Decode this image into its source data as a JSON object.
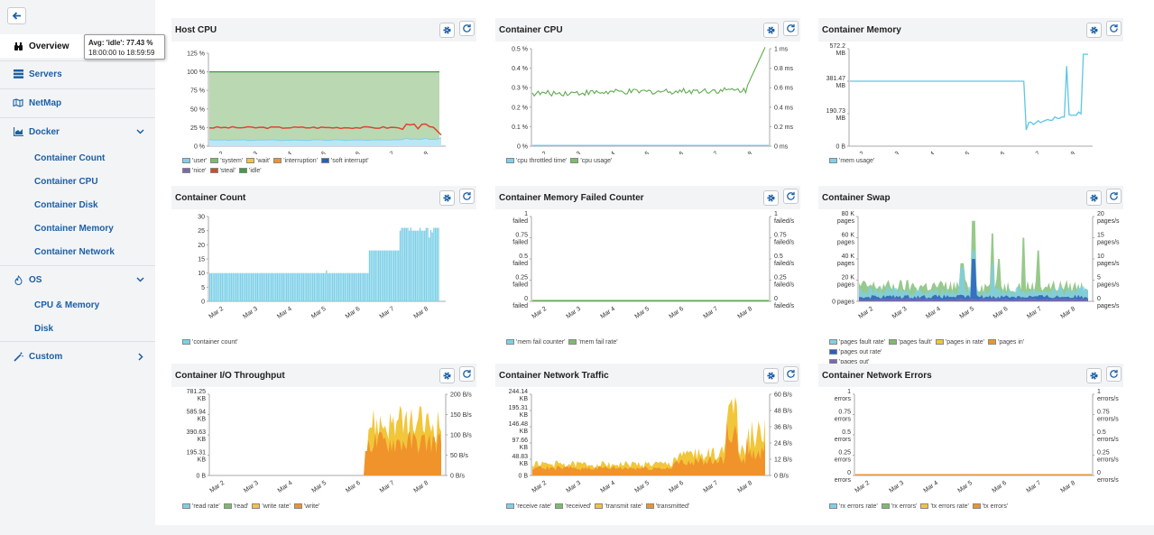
{
  "sidebar": {
    "nav": {
      "overview": "Overview",
      "servers": "Servers",
      "netmap": "NetMap",
      "docker": "Docker",
      "os": "OS",
      "custom": "Custom"
    },
    "docker_items": [
      "Container Count",
      "Container CPU",
      "Container Disk",
      "Container Memory",
      "Container Network"
    ],
    "os_items": [
      "CPU & Memory",
      "Disk"
    ]
  },
  "x_ticks": [
    "Mar 2",
    "Mar 3",
    "Mar 4",
    "Mar 5",
    "Mar 6",
    "Mar 7",
    "Mar 8"
  ],
  "tooltip": {
    "line1": "Avg: 'idle': 77.43 %",
    "line2": "18:00:00 to 18:59:59"
  },
  "panels": [
    {
      "title": "Host CPU",
      "y_left": [
        "125 %",
        "100 %",
        "75 %",
        "50 %",
        "25 %",
        "0 %"
      ],
      "y_right": [],
      "legend": [
        {
          "label": "'user'",
          "color": "#7ed0e8"
        },
        {
          "label": "'system'",
          "color": "#7dbb6e"
        },
        {
          "label": "'wait'",
          "color": "#f2c63a"
        },
        {
          "label": "'interruption'",
          "color": "#f0932b"
        },
        {
          "label": "'soft interrupt'",
          "color": "#2a5fb8"
        },
        {
          "label": "'nice'",
          "color": "#7a6aa8"
        },
        {
          "label": "'steal'",
          "color": "#d9472f"
        },
        {
          "label": "'idle'",
          "color": "#3f9a4c"
        }
      ]
    },
    {
      "title": "Container CPU",
      "y_left": [
        "0.5 %",
        "0.4 %",
        "0.3 %",
        "0.2 %",
        "0.1 %",
        "0 %"
      ],
      "y_right": [
        "1 ms",
        "0.8 ms",
        "0.6 ms",
        "0.4 ms",
        "0.2 ms",
        "0 ms"
      ],
      "legend": [
        {
          "label": "'cpu throttled time'",
          "color": "#7ed0e8"
        },
        {
          "label": "'cpu usage'",
          "color": "#7dbb6e"
        }
      ]
    },
    {
      "title": "Container Memory",
      "y_left": [
        "572.2 MB",
        "381.47 MB",
        "190.73 MB",
        "0 B"
      ],
      "y_right": [],
      "legend": [
        {
          "label": "'mem usage'",
          "color": "#7ed0e8"
        }
      ]
    },
    {
      "title": "Container Count",
      "y_left": [
        "30",
        "25",
        "20",
        "15",
        "10",
        "5",
        "0"
      ],
      "y_right": [],
      "legend": [
        {
          "label": "'container count'",
          "color": "#7ed0e8"
        }
      ]
    },
    {
      "title": "Container Memory Failed Counter",
      "y_left": [
        "1 failed",
        "0.75 failed",
        "0.5 failed",
        "0.25 failed",
        "0 failed"
      ],
      "y_right": [
        "1 failed/s",
        "0.75 failed/s",
        "0.5 failed/s",
        "0.25 failed/s",
        "0 failed/s"
      ],
      "legend": [
        {
          "label": "'mem fail counter'",
          "color": "#7ed0e8"
        },
        {
          "label": "'mem fail rate'",
          "color": "#7dbb6e"
        }
      ]
    },
    {
      "title": "Container Swap",
      "y_left": [
        "80 K pages",
        "60 K pages",
        "40 K pages",
        "20 K pages",
        "0 pages"
      ],
      "y_right": [
        "20 pages/s",
        "15 pages/s",
        "10 pages/s",
        "5 pages/s",
        "0 pages/s"
      ],
      "legend": [
        {
          "label": "'pages fault rate'",
          "color": "#7ed0e8"
        },
        {
          "label": "'pages fault'",
          "color": "#7dbb6e"
        },
        {
          "label": "'pages in rate'",
          "color": "#f2c63a"
        },
        {
          "label": "'pages in'",
          "color": "#f0932b"
        },
        {
          "label": "'pages out rate'",
          "color": "#2a5fb8"
        },
        {
          "label": "'pages out'",
          "color": "#7a6aa8"
        }
      ]
    },
    {
      "title": "Container I/O Throughput",
      "y_left": [
        "781.25 KB",
        "585.94 KB",
        "390.63 KB",
        "195.31 KB",
        "0 B"
      ],
      "y_right": [
        "200 B/s",
        "150 B/s",
        "100 B/s",
        "50 B/s",
        "0 B/s"
      ],
      "legend": [
        {
          "label": "'read rate'",
          "color": "#7ed0e8"
        },
        {
          "label": "'read'",
          "color": "#7dbb6e"
        },
        {
          "label": "'write rate'",
          "color": "#f2c63a"
        },
        {
          "label": "'write'",
          "color": "#f0932b"
        }
      ]
    },
    {
      "title": "Container Network Traffic",
      "y_left": [
        "244.14 KB",
        "195.31 KB",
        "146.48 KB",
        "97.66 KB",
        "48.83 KB",
        "0 B"
      ],
      "y_right": [
        "60 B/s",
        "48 B/s",
        "36 B/s",
        "24 B/s",
        "12 B/s",
        "0 B/s"
      ],
      "legend": [
        {
          "label": "'receive rate'",
          "color": "#7ed0e8"
        },
        {
          "label": "'received'",
          "color": "#7dbb6e"
        },
        {
          "label": "'transmit rate'",
          "color": "#f2c63a"
        },
        {
          "label": "'transmitted'",
          "color": "#f0932b"
        }
      ]
    },
    {
      "title": "Container Network Errors",
      "y_left": [
        "1 errors",
        "0.75 errors",
        "0.5 errors",
        "0.25 errors",
        "0 errors"
      ],
      "y_right": [
        "1 errors/s",
        "0.75 errors/s",
        "0.5 errors/s",
        "0.25 errors/s",
        "0 errors/s"
      ],
      "legend": [
        {
          "label": "'rx errors rate'",
          "color": "#7ed0e8"
        },
        {
          "label": "'rx errors'",
          "color": "#7dbb6e"
        },
        {
          "label": "'tx errors rate'",
          "color": "#f2c63a"
        },
        {
          "label": "'tx errors'",
          "color": "#f0932b"
        }
      ]
    }
  ]
}
